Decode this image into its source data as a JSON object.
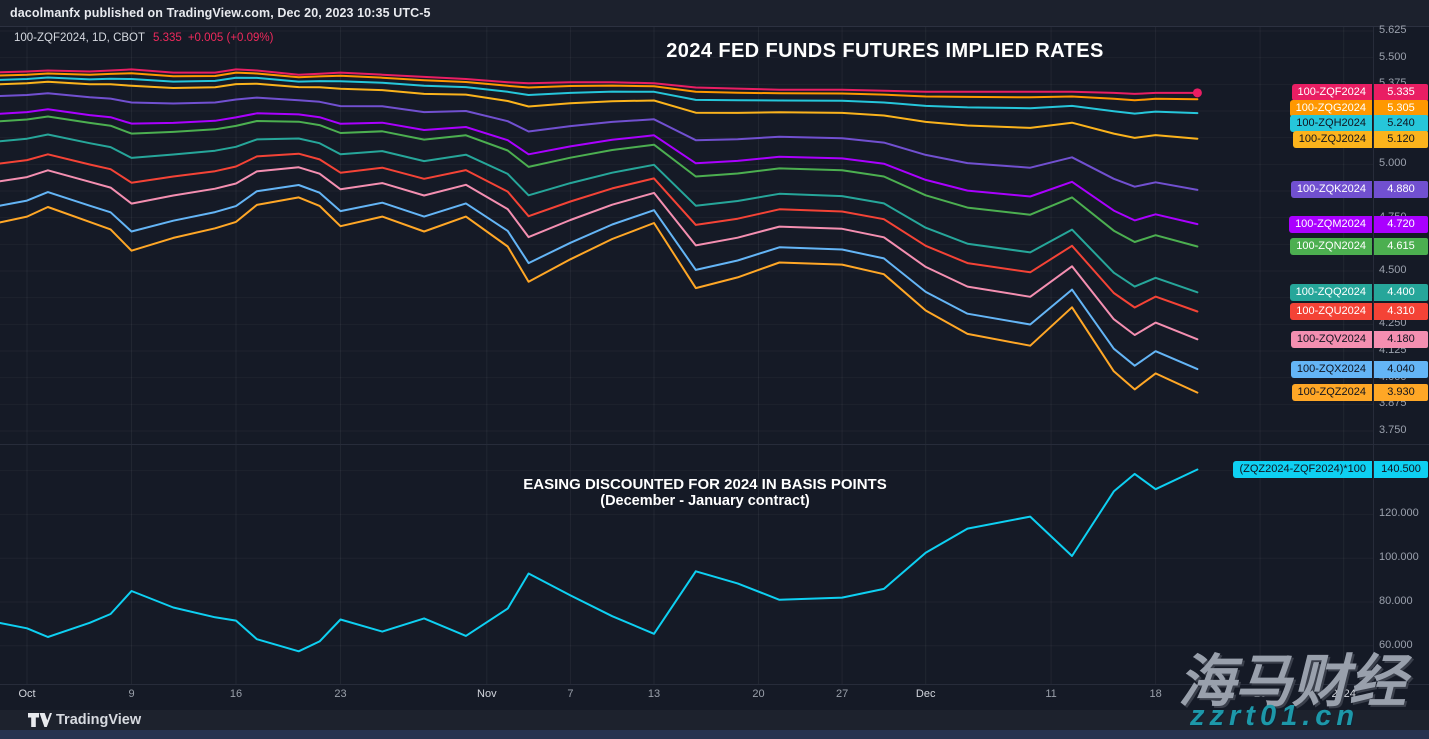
{
  "header": {
    "attribution": "dacolmanfx published on TradingView.com, Dec 20, 2023 10:35 UTC-5",
    "symbol": "100-ZQF2024, 1D, CBOT",
    "price": "5.335",
    "change": "+0.005 (+0.09%)"
  },
  "titles": {
    "pane1": "2024 FED FUNDS FUTURES IMPLIED RATES",
    "pane2_line1": "EASING DISCOUNTED FOR 2024 IN BASIS POINTS",
    "pane2_line2": "(December - January contract)"
  },
  "footer": {
    "brand": "TradingView"
  },
  "watermark": {
    "line1": "海马财经",
    "line2": "zzrt01.cn"
  },
  "colors": {
    "background": "#151a26",
    "topbar": "#1c212d",
    "grid": "rgba(255,255,255,0.05)",
    "axis_text": "#9ba1ad",
    "price_text": "#ee2a5c",
    "bottom_strip": "#273350"
  },
  "chart_data": {
    "type": "line",
    "dates": [
      "Oct 2",
      "Oct 3",
      "Oct 5",
      "Oct 6",
      "Oct 9",
      "Oct 11",
      "Oct 13",
      "Oct 16",
      "Oct 17",
      "Oct 19",
      "Oct 20",
      "Oct 23",
      "Oct 25",
      "Oct 27",
      "Oct 31",
      "Nov 2",
      "Nov 3",
      "Nov 7",
      "Nov 9",
      "Nov 13",
      "Nov 15",
      "Nov 17",
      "Nov 21",
      "Nov 27",
      "Nov 29",
      "Dec 1",
      "Dec 5",
      "Dec 8",
      "Dec 12",
      "Dec 14",
      "Dec 15",
      "Dec 18",
      "Dec 20"
    ],
    "bars": [
      0,
      1,
      3,
      4,
      5,
      7,
      9,
      10,
      11,
      13,
      14,
      15,
      17,
      19,
      21,
      23,
      24,
      26,
      28,
      30,
      32,
      34,
      36,
      39,
      41,
      43,
      45,
      48,
      50,
      52,
      53,
      54,
      56
    ],
    "pane1": {
      "y_domain": [
        3.75,
        5.625
      ],
      "ticks": [
        {
          "v": 5.625,
          "t": "5.625"
        },
        {
          "v": 5.5,
          "t": "5.500"
        },
        {
          "v": 5.375,
          "t": "5.375"
        },
        {
          "v": 5.25,
          "t": "5.250"
        },
        {
          "v": 5.125,
          "t": "5.125"
        },
        {
          "v": 5.0,
          "t": "5.000"
        },
        {
          "v": 4.875,
          "t": "4.875"
        },
        {
          "v": 4.75,
          "t": "4.750"
        },
        {
          "v": 4.625,
          "t": "4.625"
        },
        {
          "v": 4.5,
          "t": "4.500"
        },
        {
          "v": 4.375,
          "t": "4.375"
        },
        {
          "v": 4.25,
          "t": "4.250"
        },
        {
          "v": 4.125,
          "t": "4.125"
        },
        {
          "v": 4.0,
          "t": "4.000"
        },
        {
          "v": 3.875,
          "t": "3.875"
        },
        {
          "v": 3.75,
          "t": "3.750"
        }
      ],
      "series": [
        {
          "name": "100-ZQF2024",
          "end_label": "5.335",
          "color": "#e91e63",
          "text": "light",
          "values": [
            5.435,
            5.44,
            5.435,
            5.44,
            5.445,
            5.43,
            5.43,
            5.445,
            5.44,
            5.42,
            5.425,
            5.43,
            5.42,
            5.41,
            5.4,
            5.385,
            5.38,
            5.385,
            5.385,
            5.38,
            5.36,
            5.355,
            5.35,
            5.35,
            5.345,
            5.34,
            5.34,
            5.34,
            5.34,
            5.335,
            5.33,
            5.335,
            5.335
          ]
        },
        {
          "name": "100-ZQG2024",
          "end_label": "5.305",
          "color": "#ff9800",
          "text": "light",
          "values": [
            5.42,
            5.426,
            5.42,
            5.424,
            5.427,
            5.413,
            5.414,
            5.43,
            5.426,
            5.408,
            5.412,
            5.415,
            5.406,
            5.394,
            5.386,
            5.368,
            5.36,
            5.367,
            5.369,
            5.366,
            5.34,
            5.336,
            5.333,
            5.332,
            5.327,
            5.318,
            5.316,
            5.314,
            5.318,
            5.307,
            5.3,
            5.307,
            5.305
          ]
        },
        {
          "name": "100-ZQH2024",
          "end_label": "5.240",
          "color": "#26c6da",
          "text": "dark",
          "values": [
            5.4,
            5.407,
            5.398,
            5.401,
            5.4,
            5.388,
            5.391,
            5.406,
            5.405,
            5.388,
            5.39,
            5.389,
            5.382,
            5.368,
            5.362,
            5.34,
            5.325,
            5.335,
            5.341,
            5.34,
            5.302,
            5.3,
            5.299,
            5.298,
            5.29,
            5.274,
            5.267,
            5.263,
            5.274,
            5.249,
            5.238,
            5.247,
            5.24
          ]
        },
        {
          "name": "100-ZQJ2024",
          "end_label": "5.120",
          "color": "#fbb31c",
          "text": "dark",
          "values": [
            5.38,
            5.387,
            5.375,
            5.375,
            5.368,
            5.358,
            5.361,
            5.376,
            5.378,
            5.362,
            5.361,
            5.354,
            5.348,
            5.33,
            5.327,
            5.297,
            5.271,
            5.286,
            5.296,
            5.299,
            5.242,
            5.241,
            5.244,
            5.241,
            5.229,
            5.199,
            5.182,
            5.171,
            5.195,
            5.144,
            5.124,
            5.137,
            5.12
          ]
        },
        {
          "name": "100-ZQK2024",
          "end_label": "4.880",
          "color": "#7150d0",
          "text": "light",
          "values": [
            5.325,
            5.333,
            5.314,
            5.308,
            5.29,
            5.285,
            5.29,
            5.304,
            5.313,
            5.3,
            5.293,
            5.273,
            5.272,
            5.245,
            5.25,
            5.202,
            5.154,
            5.179,
            5.199,
            5.211,
            5.113,
            5.118,
            5.129,
            5.122,
            5.102,
            5.044,
            5.006,
            4.984,
            5.033,
            4.932,
            4.895,
            4.916,
            4.88
          ]
        },
        {
          "name": "100-ZQM2024",
          "end_label": "4.720",
          "color": "#aa00ff",
          "text": "light",
          "values": [
            5.245,
            5.258,
            5.231,
            5.221,
            5.191,
            5.194,
            5.204,
            5.22,
            5.239,
            5.234,
            5.221,
            5.19,
            5.195,
            5.161,
            5.175,
            5.113,
            5.047,
            5.084,
            5.115,
            5.136,
            5.005,
            5.016,
            5.036,
            5.028,
            5.003,
            4.927,
            4.877,
            4.849,
            4.918,
            4.783,
            4.737,
            4.766,
            4.72
          ]
        },
        {
          "name": "100-ZQN2024",
          "end_label": "4.615",
          "color": "#4caf50",
          "text": "light",
          "values": [
            5.21,
            5.224,
            5.194,
            5.181,
            5.144,
            5.152,
            5.164,
            5.18,
            5.203,
            5.2,
            5.184,
            5.147,
            5.155,
            5.116,
            5.136,
            5.065,
            4.988,
            5.031,
            5.067,
            5.092,
            4.943,
            4.957,
            4.981,
            4.972,
            4.943,
            4.855,
            4.797,
            4.764,
            4.845,
            4.689,
            4.636,
            4.668,
            4.615
          ]
        },
        {
          "name": "100-ZQQ2024",
          "end_label": "4.400",
          "color": "#26a69a",
          "text": "light",
          "values": [
            5.12,
            5.14,
            5.099,
            5.081,
            5.03,
            5.046,
            5.064,
            5.082,
            5.117,
            5.121,
            5.099,
            5.047,
            5.062,
            5.015,
            5.045,
            4.955,
            4.855,
            4.912,
            4.961,
            4.998,
            4.806,
            4.828,
            4.862,
            4.851,
            4.817,
            4.703,
            4.628,
            4.587,
            4.694,
            4.492,
            4.427,
            4.468,
            4.4
          ]
        },
        {
          "name": "100-ZQU2024",
          "end_label": "4.310",
          "color": "#f44336",
          "text": "light",
          "values": [
            5.02,
            5.047,
            4.999,
            4.977,
            4.914,
            4.943,
            4.968,
            4.99,
            5.037,
            5.05,
            5.023,
            4.961,
            4.984,
            4.932,
            4.973,
            4.872,
            4.757,
            4.826,
            4.887,
            4.934,
            4.716,
            4.745,
            4.789,
            4.779,
            4.743,
            4.618,
            4.537,
            4.494,
            4.618,
            4.397,
            4.329,
            4.38,
            4.31
          ]
        },
        {
          "name": "100-ZQV2024",
          "end_label": "4.180",
          "color": "#f48fb1",
          "text": "dark",
          "values": [
            4.94,
            4.972,
            4.918,
            4.891,
            4.816,
            4.854,
            4.886,
            4.91,
            4.967,
            4.986,
            4.956,
            4.883,
            4.912,
            4.854,
            4.904,
            4.79,
            4.659,
            4.739,
            4.811,
            4.866,
            4.62,
            4.656,
            4.708,
            4.698,
            4.658,
            4.519,
            4.427,
            4.379,
            4.522,
            4.274,
            4.2,
            4.258,
            4.18
          ]
        },
        {
          "name": "100-ZQX2024",
          "end_label": "4.040",
          "color": "#64b5f6",
          "text": "dark",
          "values": [
            4.83,
            4.87,
            4.806,
            4.775,
            4.685,
            4.736,
            4.776,
            4.804,
            4.874,
            4.903,
            4.867,
            4.781,
            4.82,
            4.755,
            4.817,
            4.688,
            4.537,
            4.632,
            4.718,
            4.785,
            4.505,
            4.549,
            4.611,
            4.601,
            4.559,
            4.402,
            4.3,
            4.249,
            4.413,
            4.136,
            4.056,
            4.124,
            4.04
          ]
        },
        {
          "name": "100-ZQZ2024",
          "end_label": "3.930",
          "color": "#ffa726",
          "text": "dark",
          "values": [
            4.755,
            4.8,
            4.73,
            4.695,
            4.595,
            4.655,
            4.7,
            4.73,
            4.81,
            4.845,
            4.805,
            4.71,
            4.755,
            4.685,
            4.755,
            4.615,
            4.45,
            4.555,
            4.65,
            4.725,
            4.42,
            4.47,
            4.54,
            4.53,
            4.485,
            4.315,
            4.205,
            4.15,
            4.33,
            4.03,
            3.945,
            4.02,
            3.93
          ]
        }
      ]
    },
    "pane2": {
      "y_domain": [
        55,
        150
      ],
      "grid": [
        140,
        120,
        100,
        80,
        60
      ],
      "ticks": [
        {
          "v": 120,
          "t": "120.000"
        },
        {
          "v": 100,
          "t": "100.000"
        },
        {
          "v": 80,
          "t": "80.000"
        },
        {
          "v": 60,
          "t": "60.000"
        }
      ],
      "series": {
        "name": "(ZQZ2024-ZQF2024)*100",
        "end_label": "140.500",
        "color": "#0ed0f2",
        "text": "dark",
        "values": [
          68,
          64,
          70.5,
          74.5,
          85,
          77.5,
          73,
          71.5,
          63,
          57.5,
          62,
          72,
          66.5,
          72.5,
          64.5,
          77,
          93,
          83,
          73.5,
          65.5,
          94,
          88.5,
          81,
          82,
          86,
          102.5,
          113.5,
          119,
          101,
          130.5,
          138.5,
          131.5,
          140.5
        ]
      }
    },
    "x_axis": [
      {
        "t": "Oct",
        "bar": 0,
        "major": true
      },
      {
        "t": "9",
        "bar": 5
      },
      {
        "t": "16",
        "bar": 10
      },
      {
        "t": "23",
        "bar": 15
      },
      {
        "t": "Nov",
        "bar": 22,
        "major": true
      },
      {
        "t": "7",
        "bar": 26
      },
      {
        "t": "13",
        "bar": 30
      },
      {
        "t": "20",
        "bar": 35
      },
      {
        "t": "27",
        "bar": 39
      },
      {
        "t": "Dec",
        "bar": 43,
        "major": true
      },
      {
        "t": "11",
        "bar": 49
      },
      {
        "t": "18",
        "bar": 54
      },
      {
        "t": "26",
        "bar": 59
      },
      {
        "t": "2024",
        "bar": 63,
        "major": true
      }
    ]
  }
}
